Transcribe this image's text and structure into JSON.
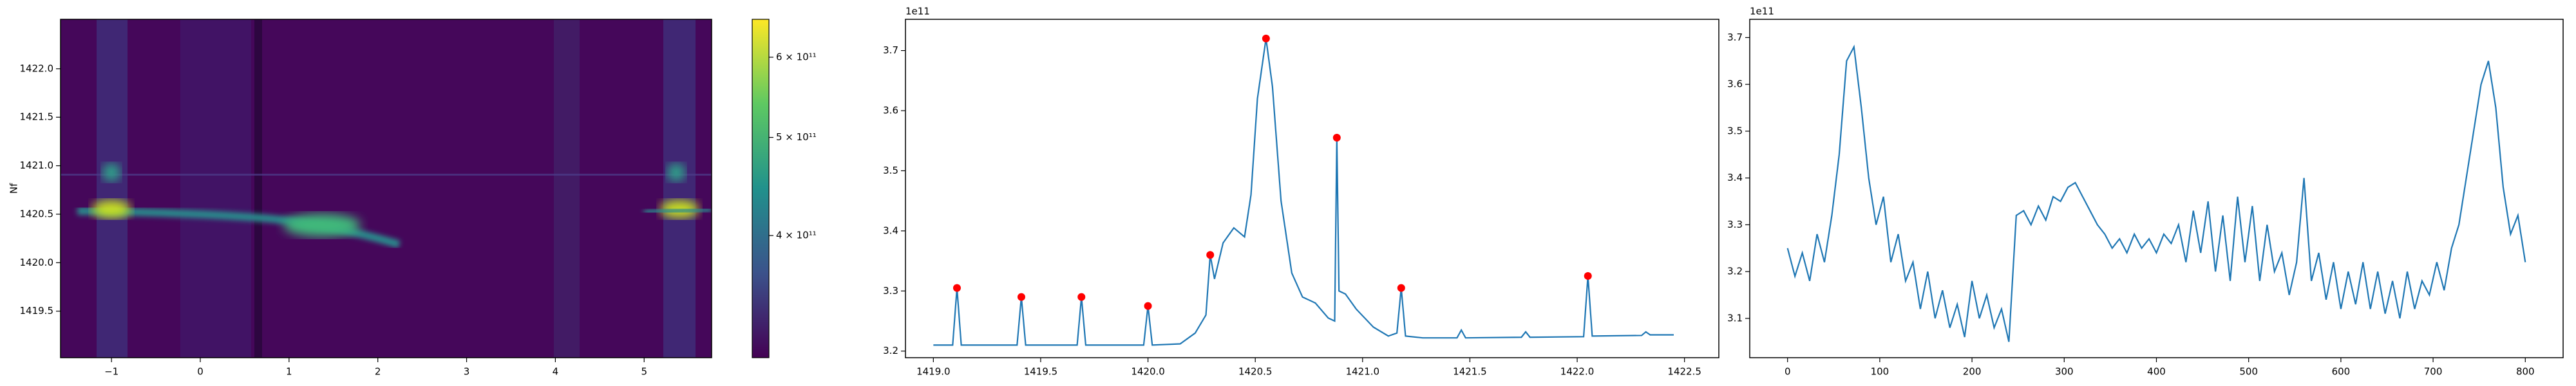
{
  "chart_data": [
    {
      "type": "heatmap",
      "ylabel": "Nf",
      "xlim": [
        -1.574,
        5.76
      ],
      "ylim": [
        1419.02,
        1422.51
      ],
      "xticks": [
        {
          "value": -1,
          "label": "−1"
        },
        0,
        1,
        2,
        3,
        4,
        5
      ],
      "yticks": [
        1419.5,
        {
          "value": 1420,
          "label": "1420.0"
        },
        1420.5,
        {
          "value": 1421,
          "label": "1421.0"
        },
        1421.5,
        {
          "value": 1422,
          "label": "1422.0"
        }
      ],
      "colorbar": {
        "colormap": "viridis",
        "scale": "log",
        "lim": [
          303000000000,
          654000000000
        ],
        "ticks": [
          {
            "value": 400000000000,
            "label": "4 × 10¹¹"
          },
          {
            "value": 500000000000,
            "label": "5 × 10¹¹"
          },
          {
            "value": 600000000000,
            "label": "6 × 10¹¹"
          }
        ]
      }
    },
    {
      "type": "line",
      "offset_text": "1e11",
      "xlim": [
        1418.87,
        1422.66
      ],
      "ylim": [
        3.189,
        3.752
      ],
      "xticks": [
        {
          "value": 1419,
          "label": "1419.0"
        },
        1419.5,
        {
          "value": 1420,
          "label": "1420.0"
        },
        1420.5,
        {
          "value": 1421,
          "label": "1421.0"
        },
        1421.5,
        {
          "value": 1422,
          "label": "1422.0"
        },
        1422.5
      ],
      "yticks": [
        3.2,
        3.3,
        3.4,
        3.5,
        3.6,
        3.7
      ],
      "series": [
        {
          "color": "#1f77b4",
          "x": [
            1419.0,
            1419.09,
            1419.11,
            1419.13,
            1419.39,
            1419.41,
            1419.43,
            1419.67,
            1419.69,
            1419.71,
            1419.98,
            1420.0,
            1420.02,
            1420.15,
            1420.22,
            1420.27,
            1420.29,
            1420.31,
            1420.35,
            1420.4,
            1420.45,
            1420.48,
            1420.51,
            1420.55,
            1420.58,
            1420.62,
            1420.67,
            1420.72,
            1420.78,
            1420.84,
            1420.87,
            1420.88,
            1420.89,
            1420.92,
            1420.97,
            1421.05,
            1421.12,
            1421.16,
            1421.18,
            1421.2,
            1421.28,
            1421.44,
            1421.46,
            1421.48,
            1421.74,
            1421.76,
            1421.78,
            1422.03,
            1422.05,
            1422.07,
            1422.3,
            1422.32,
            1422.34,
            1422.45
          ],
          "values": [
            3.21,
            3.21,
            3.305,
            3.21,
            3.21,
            3.29,
            3.21,
            3.21,
            3.29,
            3.21,
            3.21,
            3.275,
            3.21,
            3.212,
            3.23,
            3.26,
            3.36,
            3.32,
            3.38,
            3.405,
            3.39,
            3.46,
            3.62,
            3.72,
            3.64,
            3.45,
            3.33,
            3.29,
            3.28,
            3.255,
            3.25,
            3.555,
            3.3,
            3.295,
            3.27,
            3.24,
            3.225,
            3.23,
            3.305,
            3.225,
            3.222,
            3.222,
            3.235,
            3.222,
            3.223,
            3.232,
            3.223,
            3.224,
            3.325,
            3.225,
            3.226,
            3.232,
            3.227,
            3.227
          ]
        },
        {
          "color": "red",
          "marker": "o",
          "x": [
            1419.11,
            1419.41,
            1419.69,
            1420.0,
            1420.29,
            1420.55,
            1420.88,
            1421.18,
            1422.05
          ],
          "values": [
            3.305,
            3.29,
            3.29,
            3.275,
            3.36,
            3.72,
            3.555,
            3.305,
            3.325
          ]
        }
      ]
    },
    {
      "type": "line",
      "offset_text": "1e11",
      "xlim": [
        -41,
        841
      ],
      "ylim": [
        3.016,
        3.739
      ],
      "xticks": [
        0,
        100,
        200,
        300,
        400,
        500,
        600,
        700,
        800
      ],
      "yticks": [
        3.1,
        3.2,
        3.3,
        3.4,
        3.5,
        3.6,
        3.7
      ],
      "series": [
        {
          "color": "#1f77b4",
          "x": [
            0,
            8,
            16,
            24,
            32,
            40,
            48,
            56,
            64,
            72,
            80,
            88,
            96,
            104,
            112,
            120,
            128,
            136,
            144,
            152,
            160,
            168,
            176,
            184,
            192,
            200,
            208,
            216,
            224,
            232,
            240,
            248,
            256,
            264,
            272,
            280,
            288,
            296,
            304,
            312,
            320,
            328,
            336,
            344,
            352,
            360,
            368,
            376,
            384,
            392,
            400,
            408,
            416,
            424,
            432,
            440,
            448,
            456,
            464,
            472,
            480,
            488,
            496,
            504,
            512,
            520,
            528,
            536,
            544,
            552,
            560,
            568,
            576,
            584,
            592,
            600,
            608,
            616,
            624,
            632,
            640,
            648,
            656,
            664,
            672,
            680,
            688,
            696,
            704,
            712,
            720,
            728,
            736,
            744,
            752,
            760,
            768,
            776,
            784,
            792,
            800
          ],
          "values": [
            3.25,
            3.19,
            3.24,
            3.18,
            3.28,
            3.22,
            3.32,
            3.45,
            3.65,
            3.68,
            3.55,
            3.4,
            3.3,
            3.36,
            3.22,
            3.28,
            3.18,
            3.22,
            3.12,
            3.2,
            3.1,
            3.16,
            3.08,
            3.13,
            3.06,
            3.18,
            3.1,
            3.15,
            3.08,
            3.12,
            3.05,
            3.32,
            3.33,
            3.3,
            3.34,
            3.31,
            3.36,
            3.35,
            3.38,
            3.39,
            3.36,
            3.33,
            3.3,
            3.28,
            3.25,
            3.27,
            3.24,
            3.28,
            3.25,
            3.27,
            3.24,
            3.28,
            3.26,
            3.3,
            3.22,
            3.33,
            3.24,
            3.35,
            3.2,
            3.32,
            3.18,
            3.36,
            3.22,
            3.34,
            3.18,
            3.3,
            3.2,
            3.24,
            3.15,
            3.22,
            3.4,
            3.18,
            3.24,
            3.14,
            3.22,
            3.12,
            3.2,
            3.13,
            3.22,
            3.12,
            3.2,
            3.11,
            3.18,
            3.1,
            3.2,
            3.12,
            3.18,
            3.15,
            3.22,
            3.16,
            3.25,
            3.3,
            3.4,
            3.5,
            3.6,
            3.65,
            3.55,
            3.38,
            3.28,
            3.32,
            3.22
          ]
        }
      ]
    }
  ]
}
